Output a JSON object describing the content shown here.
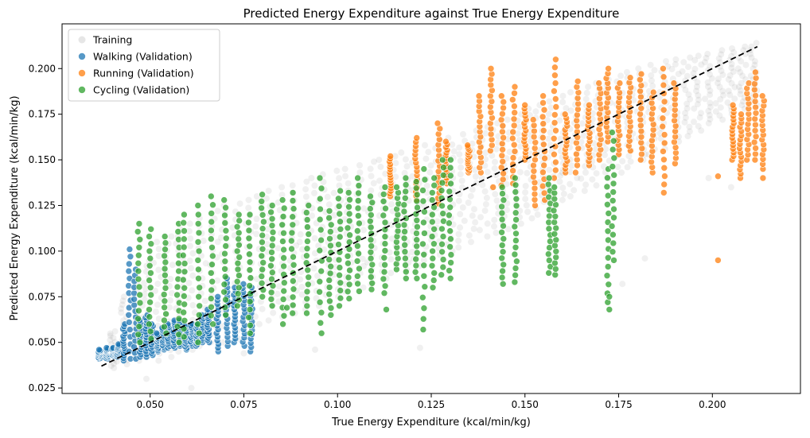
{
  "chart_data": {
    "type": "scatter",
    "title": "Predicted Energy Expenditure against True Energy Expenditure",
    "xlabel": "True Energy Expenditure (kcal/min/kg)",
    "ylabel": "Predicted Energy Expenditure (kcal/min/kg)",
    "xlim": [
      0.0265,
      0.2235
    ],
    "ylim": [
      0.022,
      0.2245
    ],
    "x_ticks": [
      0.05,
      0.075,
      0.1,
      0.125,
      0.15,
      0.175,
      0.2
    ],
    "x_tick_labels": [
      "0.050",
      "0.075",
      "0.100",
      "0.125",
      "0.150",
      "0.175",
      "0.200"
    ],
    "y_ticks": [
      0.025,
      0.05,
      0.075,
      0.1,
      0.125,
      0.15,
      0.175,
      0.2
    ],
    "y_tick_labels": [
      "0.025",
      "0.050",
      "0.075",
      "0.100",
      "0.125",
      "0.150",
      "0.175",
      "0.200"
    ],
    "grid": false,
    "legend_position": "upper-left",
    "reference_line": {
      "style": "dashed",
      "color": "#000000",
      "x": [
        0.037,
        0.212
      ],
      "y": [
        0.037,
        0.212
      ]
    },
    "series": [
      {
        "name": "Training",
        "color": "#808080",
        "opacity": 0.12,
        "columns": [
          [
            0.04,
            0.036,
            0.056
          ],
          [
            0.043,
            0.038,
            0.075
          ],
          [
            0.046,
            0.04,
            0.085
          ],
          [
            0.049,
            0.042,
            0.095
          ],
          [
            0.052,
            0.04,
            0.105
          ],
          [
            0.055,
            0.042,
            0.108
          ],
          [
            0.058,
            0.045,
            0.112
          ],
          [
            0.061,
            0.046,
            0.115
          ],
          [
            0.064,
            0.048,
            0.118
          ],
          [
            0.067,
            0.05,
            0.122
          ],
          [
            0.07,
            0.05,
            0.125
          ],
          [
            0.073,
            0.052,
            0.126
          ],
          [
            0.076,
            0.055,
            0.128
          ],
          [
            0.079,
            0.06,
            0.13
          ],
          [
            0.082,
            0.062,
            0.133
          ],
          [
            0.085,
            0.064,
            0.135
          ],
          [
            0.088,
            0.066,
            0.136
          ],
          [
            0.091,
            0.068,
            0.138
          ],
          [
            0.094,
            0.07,
            0.14
          ],
          [
            0.097,
            0.072,
            0.142
          ],
          [
            0.1,
            0.075,
            0.144
          ],
          [
            0.103,
            0.078,
            0.145
          ],
          [
            0.106,
            0.08,
            0.147
          ],
          [
            0.109,
            0.082,
            0.149
          ],
          [
            0.112,
            0.085,
            0.15
          ],
          [
            0.115,
            0.088,
            0.152
          ],
          [
            0.118,
            0.09,
            0.154
          ],
          [
            0.121,
            0.092,
            0.156
          ],
          [
            0.124,
            0.095,
            0.158
          ],
          [
            0.127,
            0.098,
            0.16
          ],
          [
            0.13,
            0.1,
            0.162
          ],
          [
            0.133,
            0.102,
            0.164
          ],
          [
            0.136,
            0.105,
            0.166
          ],
          [
            0.139,
            0.108,
            0.168
          ],
          [
            0.142,
            0.11,
            0.17
          ],
          [
            0.145,
            0.112,
            0.172
          ],
          [
            0.148,
            0.115,
            0.175
          ],
          [
            0.151,
            0.118,
            0.178
          ],
          [
            0.154,
            0.12,
            0.18
          ],
          [
            0.157,
            0.124,
            0.182
          ],
          [
            0.16,
            0.128,
            0.185
          ],
          [
            0.163,
            0.13,
            0.187
          ],
          [
            0.166,
            0.133,
            0.19
          ],
          [
            0.169,
            0.136,
            0.192
          ],
          [
            0.172,
            0.14,
            0.194
          ],
          [
            0.175,
            0.143,
            0.196
          ],
          [
            0.178,
            0.146,
            0.198
          ],
          [
            0.181,
            0.15,
            0.2
          ],
          [
            0.184,
            0.153,
            0.202
          ],
          [
            0.187,
            0.156,
            0.204
          ],
          [
            0.19,
            0.16,
            0.205
          ],
          [
            0.193,
            0.163,
            0.206
          ],
          [
            0.196,
            0.166,
            0.207
          ],
          [
            0.199,
            0.17,
            0.208
          ],
          [
            0.202,
            0.172,
            0.21
          ],
          [
            0.205,
            0.175,
            0.211
          ],
          [
            0.208,
            0.178,
            0.212
          ],
          [
            0.211,
            0.18,
            0.214
          ]
        ],
        "points": [
          [
            0.049,
            0.03
          ],
          [
            0.061,
            0.025
          ],
          [
            0.075,
            0.044
          ],
          [
            0.094,
            0.046
          ],
          [
            0.122,
            0.047
          ],
          [
            0.176,
            0.082
          ],
          [
            0.182,
            0.096
          ],
          [
            0.16,
            0.143
          ],
          [
            0.199,
            0.14
          ],
          [
            0.205,
            0.135
          ]
        ]
      },
      {
        "name": "Walking (Validation)",
        "color": "#1f77b4",
        "opacity": 0.75,
        "columns": [
          [
            0.0365,
            0.041,
            0.046
          ],
          [
            0.0385,
            0.041,
            0.047
          ],
          [
            0.04,
            0.042,
            0.047
          ],
          [
            0.0415,
            0.042,
            0.049
          ],
          [
            0.043,
            0.04,
            0.06
          ],
          [
            0.0445,
            0.041,
            0.101
          ],
          [
            0.046,
            0.041,
            0.09
          ],
          [
            0.0475,
            0.042,
            0.062
          ],
          [
            0.049,
            0.042,
            0.065
          ],
          [
            0.0505,
            0.043,
            0.06
          ],
          [
            0.052,
            0.045,
            0.055
          ],
          [
            0.0535,
            0.046,
            0.058
          ],
          [
            0.055,
            0.047,
            0.06
          ],
          [
            0.0565,
            0.047,
            0.062
          ],
          [
            0.058,
            0.048,
            0.062
          ],
          [
            0.0595,
            0.046,
            0.059
          ],
          [
            0.061,
            0.048,
            0.06
          ],
          [
            0.0625,
            0.048,
            0.06
          ],
          [
            0.064,
            0.05,
            0.065
          ],
          [
            0.0655,
            0.05,
            0.068
          ],
          [
            0.068,
            0.045,
            0.075
          ],
          [
            0.0705,
            0.048,
            0.085
          ],
          [
            0.0725,
            0.05,
            0.08
          ],
          [
            0.075,
            0.048,
            0.082
          ],
          [
            0.077,
            0.045,
            0.08
          ]
        ],
        "points": []
      },
      {
        "name": "Running (Validation)",
        "color": "#ff7f0e",
        "opacity": 0.75,
        "columns": [
          [
            0.114,
            0.13,
            0.152
          ],
          [
            0.121,
            0.128,
            0.162
          ],
          [
            0.127,
            0.126,
            0.17
          ],
          [
            0.129,
            0.137,
            0.16
          ],
          [
            0.135,
            0.143,
            0.158
          ],
          [
            0.138,
            0.143,
            0.185
          ],
          [
            0.141,
            0.155,
            0.2
          ],
          [
            0.144,
            0.136,
            0.185
          ],
          [
            0.147,
            0.137,
            0.19
          ],
          [
            0.15,
            0.15,
            0.18
          ],
          [
            0.1525,
            0.125,
            0.172
          ],
          [
            0.155,
            0.128,
            0.185
          ],
          [
            0.158,
            0.14,
            0.205
          ],
          [
            0.161,
            0.143,
            0.175
          ],
          [
            0.164,
            0.147,
            0.193
          ],
          [
            0.167,
            0.147,
            0.18
          ],
          [
            0.17,
            0.15,
            0.192
          ],
          [
            0.172,
            0.16,
            0.2
          ],
          [
            0.175,
            0.153,
            0.192
          ],
          [
            0.178,
            0.155,
            0.195
          ],
          [
            0.181,
            0.15,
            0.197
          ],
          [
            0.184,
            0.143,
            0.187
          ],
          [
            0.187,
            0.132,
            0.2
          ],
          [
            0.19,
            0.148,
            0.192
          ],
          [
            0.2055,
            0.15,
            0.18
          ],
          [
            0.2075,
            0.14,
            0.175
          ],
          [
            0.2095,
            0.15,
            0.192
          ],
          [
            0.2115,
            0.15,
            0.198
          ],
          [
            0.2135,
            0.145,
            0.185
          ]
        ],
        "points": [
          [
            0.2015,
            0.095
          ],
          [
            0.2015,
            0.141
          ],
          [
            0.2135,
            0.14
          ],
          [
            0.1635,
            0.143
          ],
          [
            0.1415,
            0.135
          ]
        ]
      },
      {
        "name": "Cycling (Validation)",
        "color": "#2ca02c",
        "opacity": 0.75,
        "columns": [
          [
            0.047,
            0.05,
            0.115
          ],
          [
            0.05,
            0.052,
            0.112
          ],
          [
            0.054,
            0.055,
            0.108
          ],
          [
            0.0575,
            0.05,
            0.115
          ],
          [
            0.059,
            0.053,
            0.12
          ],
          [
            0.063,
            0.05,
            0.125
          ],
          [
            0.0665,
            0.06,
            0.13
          ],
          [
            0.07,
            0.065,
            0.128
          ],
          [
            0.0735,
            0.07,
            0.12
          ],
          [
            0.0765,
            0.055,
            0.12
          ],
          [
            0.08,
            0.075,
            0.131
          ],
          [
            0.0825,
            0.07,
            0.125
          ],
          [
            0.0855,
            0.06,
            0.128
          ],
          [
            0.088,
            0.066,
            0.132
          ],
          [
            0.092,
            0.066,
            0.125
          ],
          [
            0.0955,
            0.055,
            0.14
          ],
          [
            0.098,
            0.065,
            0.122
          ],
          [
            0.1005,
            0.07,
            0.133
          ],
          [
            0.103,
            0.074,
            0.132
          ],
          [
            0.1055,
            0.078,
            0.14
          ],
          [
            0.109,
            0.079,
            0.13
          ],
          [
            0.1125,
            0.077,
            0.135
          ],
          [
            0.116,
            0.09,
            0.135
          ],
          [
            0.118,
            0.085,
            0.14
          ],
          [
            0.121,
            0.085,
            0.138
          ],
          [
            0.123,
            0.057,
            0.145
          ],
          [
            0.1255,
            0.08,
            0.14
          ],
          [
            0.128,
            0.087,
            0.15
          ],
          [
            0.13,
            0.085,
            0.15
          ],
          [
            0.144,
            0.082,
            0.135
          ],
          [
            0.1475,
            0.083,
            0.14
          ],
          [
            0.1565,
            0.088,
            0.14
          ],
          [
            0.158,
            0.087,
            0.135
          ],
          [
            0.172,
            0.072,
            0.145
          ],
          [
            0.1735,
            0.095,
            0.165
          ]
        ],
        "points": [
          [
            0.113,
            0.068
          ],
          [
            0.0865,
            0.069
          ],
          [
            0.1725,
            0.068
          ],
          [
            0.1725,
            0.075
          ]
        ]
      }
    ]
  }
}
